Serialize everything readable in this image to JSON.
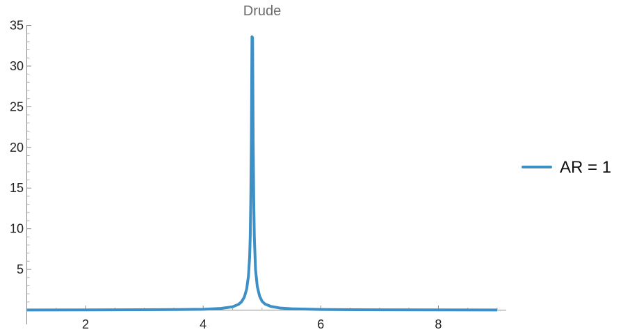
{
  "chart_data": {
    "type": "line",
    "title": "Drude",
    "xlabel": "",
    "ylabel": "",
    "xlim": [
      1,
      9
    ],
    "ylim": [
      0,
      35
    ],
    "x_ticks": [
      2,
      4,
      6,
      8
    ],
    "y_ticks": [
      5,
      10,
      15,
      20,
      25,
      30,
      35
    ],
    "grid": false,
    "legend_position": "right",
    "series": [
      {
        "name": "AR = 1",
        "color": "#3d8fc6",
        "peak": {
          "x": 4.83,
          "y": 33.6
        },
        "x": [
          1.0,
          2.0,
          3.0,
          3.5,
          4.0,
          4.3,
          4.5,
          4.6,
          4.65,
          4.7,
          4.74,
          4.77,
          4.79,
          4.8,
          4.81,
          4.82,
          4.83,
          4.84,
          4.85,
          4.86,
          4.87,
          4.89,
          4.92,
          4.96,
          5.0,
          5.05,
          5.15,
          5.3,
          5.5,
          6.0,
          7.0,
          8.0,
          9.0
        ],
        "y": [
          0.01,
          0.02,
          0.04,
          0.06,
          0.1,
          0.2,
          0.4,
          0.7,
          1.0,
          1.6,
          2.6,
          4.2,
          6.5,
          9.0,
          13.5,
          21.0,
          33.6,
          33.5,
          21.0,
          13.5,
          9.0,
          5.0,
          2.9,
          1.7,
          1.1,
          0.75,
          0.45,
          0.26,
          0.16,
          0.07,
          0.03,
          0.02,
          0.01
        ]
      }
    ]
  }
}
